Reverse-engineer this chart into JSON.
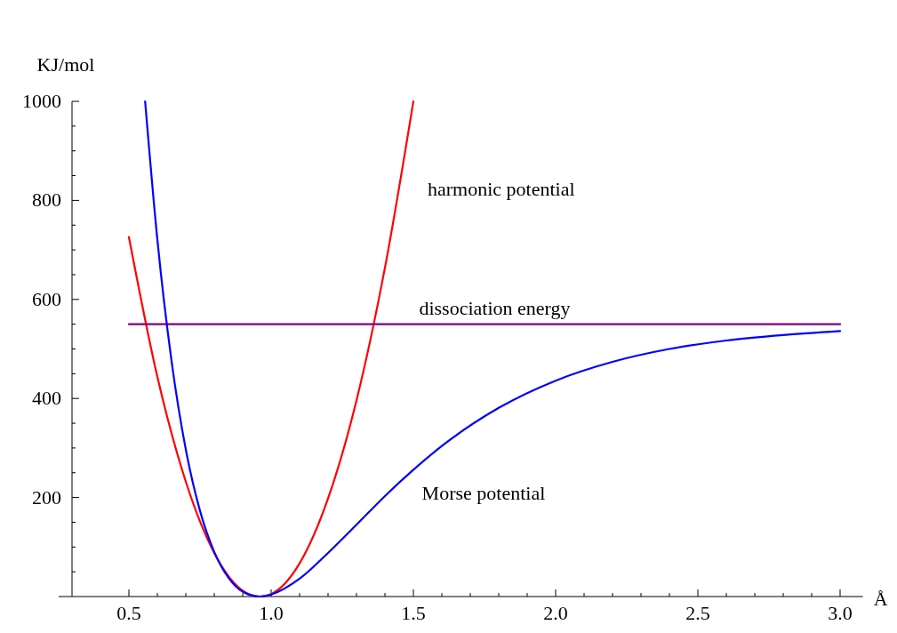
{
  "chart_data": {
    "type": "line",
    "ylabel": "KJ/mol",
    "xlabel": "Å",
    "xlim": [
      0.3,
      3.08
    ],
    "ylim": [
      0,
      1000
    ],
    "xticks": [
      {
        "value": 0.5,
        "label": "0.5"
      },
      {
        "value": 0.6,
        "label": null
      },
      {
        "value": 0.7,
        "label": null
      },
      {
        "value": 0.8,
        "label": null
      },
      {
        "value": 0.9,
        "label": null
      },
      {
        "value": 1,
        "label": "1.0"
      },
      {
        "value": 1.1,
        "label": null
      },
      {
        "value": 1.2,
        "label": null
      },
      {
        "value": 1.3,
        "label": null
      },
      {
        "value": 1.4,
        "label": null
      },
      {
        "value": 1.5,
        "label": "1.5"
      },
      {
        "value": 1.6,
        "label": null
      },
      {
        "value": 1.7,
        "label": null
      },
      {
        "value": 1.8,
        "label": null
      },
      {
        "value": 1.9,
        "label": null
      },
      {
        "value": 2,
        "label": "2.0"
      },
      {
        "value": 2.1,
        "label": null
      },
      {
        "value": 2.2,
        "label": null
      },
      {
        "value": 2.3,
        "label": null
      },
      {
        "value": 2.4,
        "label": null
      },
      {
        "value": 2.5,
        "label": "2.5"
      },
      {
        "value": 2.6,
        "label": null
      },
      {
        "value": 2.7,
        "label": null
      },
      {
        "value": 2.8,
        "label": null
      },
      {
        "value": 2.9,
        "label": null
      },
      {
        "value": 3,
        "label": "3.0"
      }
    ],
    "yticks": [
      {
        "value": 50,
        "label": null
      },
      {
        "value": 100,
        "label": null
      },
      {
        "value": 150,
        "label": null
      },
      200,
      {
        "value": 250,
        "label": null
      },
      {
        "value": 300,
        "label": null
      },
      {
        "value": 350,
        "label": null
      },
      400,
      {
        "value": 450,
        "label": null
      },
      {
        "value": 500,
        "label": null
      },
      {
        "value": 550,
        "label": null
      },
      600,
      {
        "value": 650,
        "label": null
      },
      {
        "value": 700,
        "label": null
      },
      {
        "value": 750,
        "label": null
      },
      800,
      {
        "value": 850,
        "label": null
      },
      {
        "value": 900,
        "label": null
      },
      {
        "value": 950,
        "label": null
      },
      1000
    ],
    "grid": false,
    "line_style": "solid",
    "series": [
      {
        "name": "harmonic potential",
        "color": "#ff0000",
        "x": [
          0.5,
          0.6,
          0.7,
          0.8,
          0.9,
          0.96,
          1.0,
          1.1,
          1.2,
          1.3,
          1.4,
          1.5
        ],
        "values": [
          726,
          444,
          232,
          88,
          12,
          0,
          5,
          67,
          198,
          396,
          664,
          1000
        ]
      },
      {
        "name": "dissociation energy",
        "color": "#800080",
        "x": [
          0.5,
          3.0
        ],
        "values": [
          550,
          550
        ]
      },
      {
        "name": "Morse potential",
        "color": "#0000ff",
        "x": [
          0.557,
          0.6,
          0.65,
          0.7,
          0.75,
          0.8,
          0.85,
          0.9,
          0.96,
          1.0,
          1.1,
          1.2,
          1.3,
          1.4,
          1.5,
          1.6,
          1.8,
          2.0,
          2.2,
          2.4,
          2.6,
          2.8,
          3.0
        ],
        "values": [
          1000,
          721,
          475,
          297,
          173,
          90,
          38,
          10,
          0,
          4,
          36,
          88,
          145,
          203,
          256,
          304,
          381,
          436,
          474,
          500,
          517,
          528,
          536
        ]
      }
    ]
  }
}
